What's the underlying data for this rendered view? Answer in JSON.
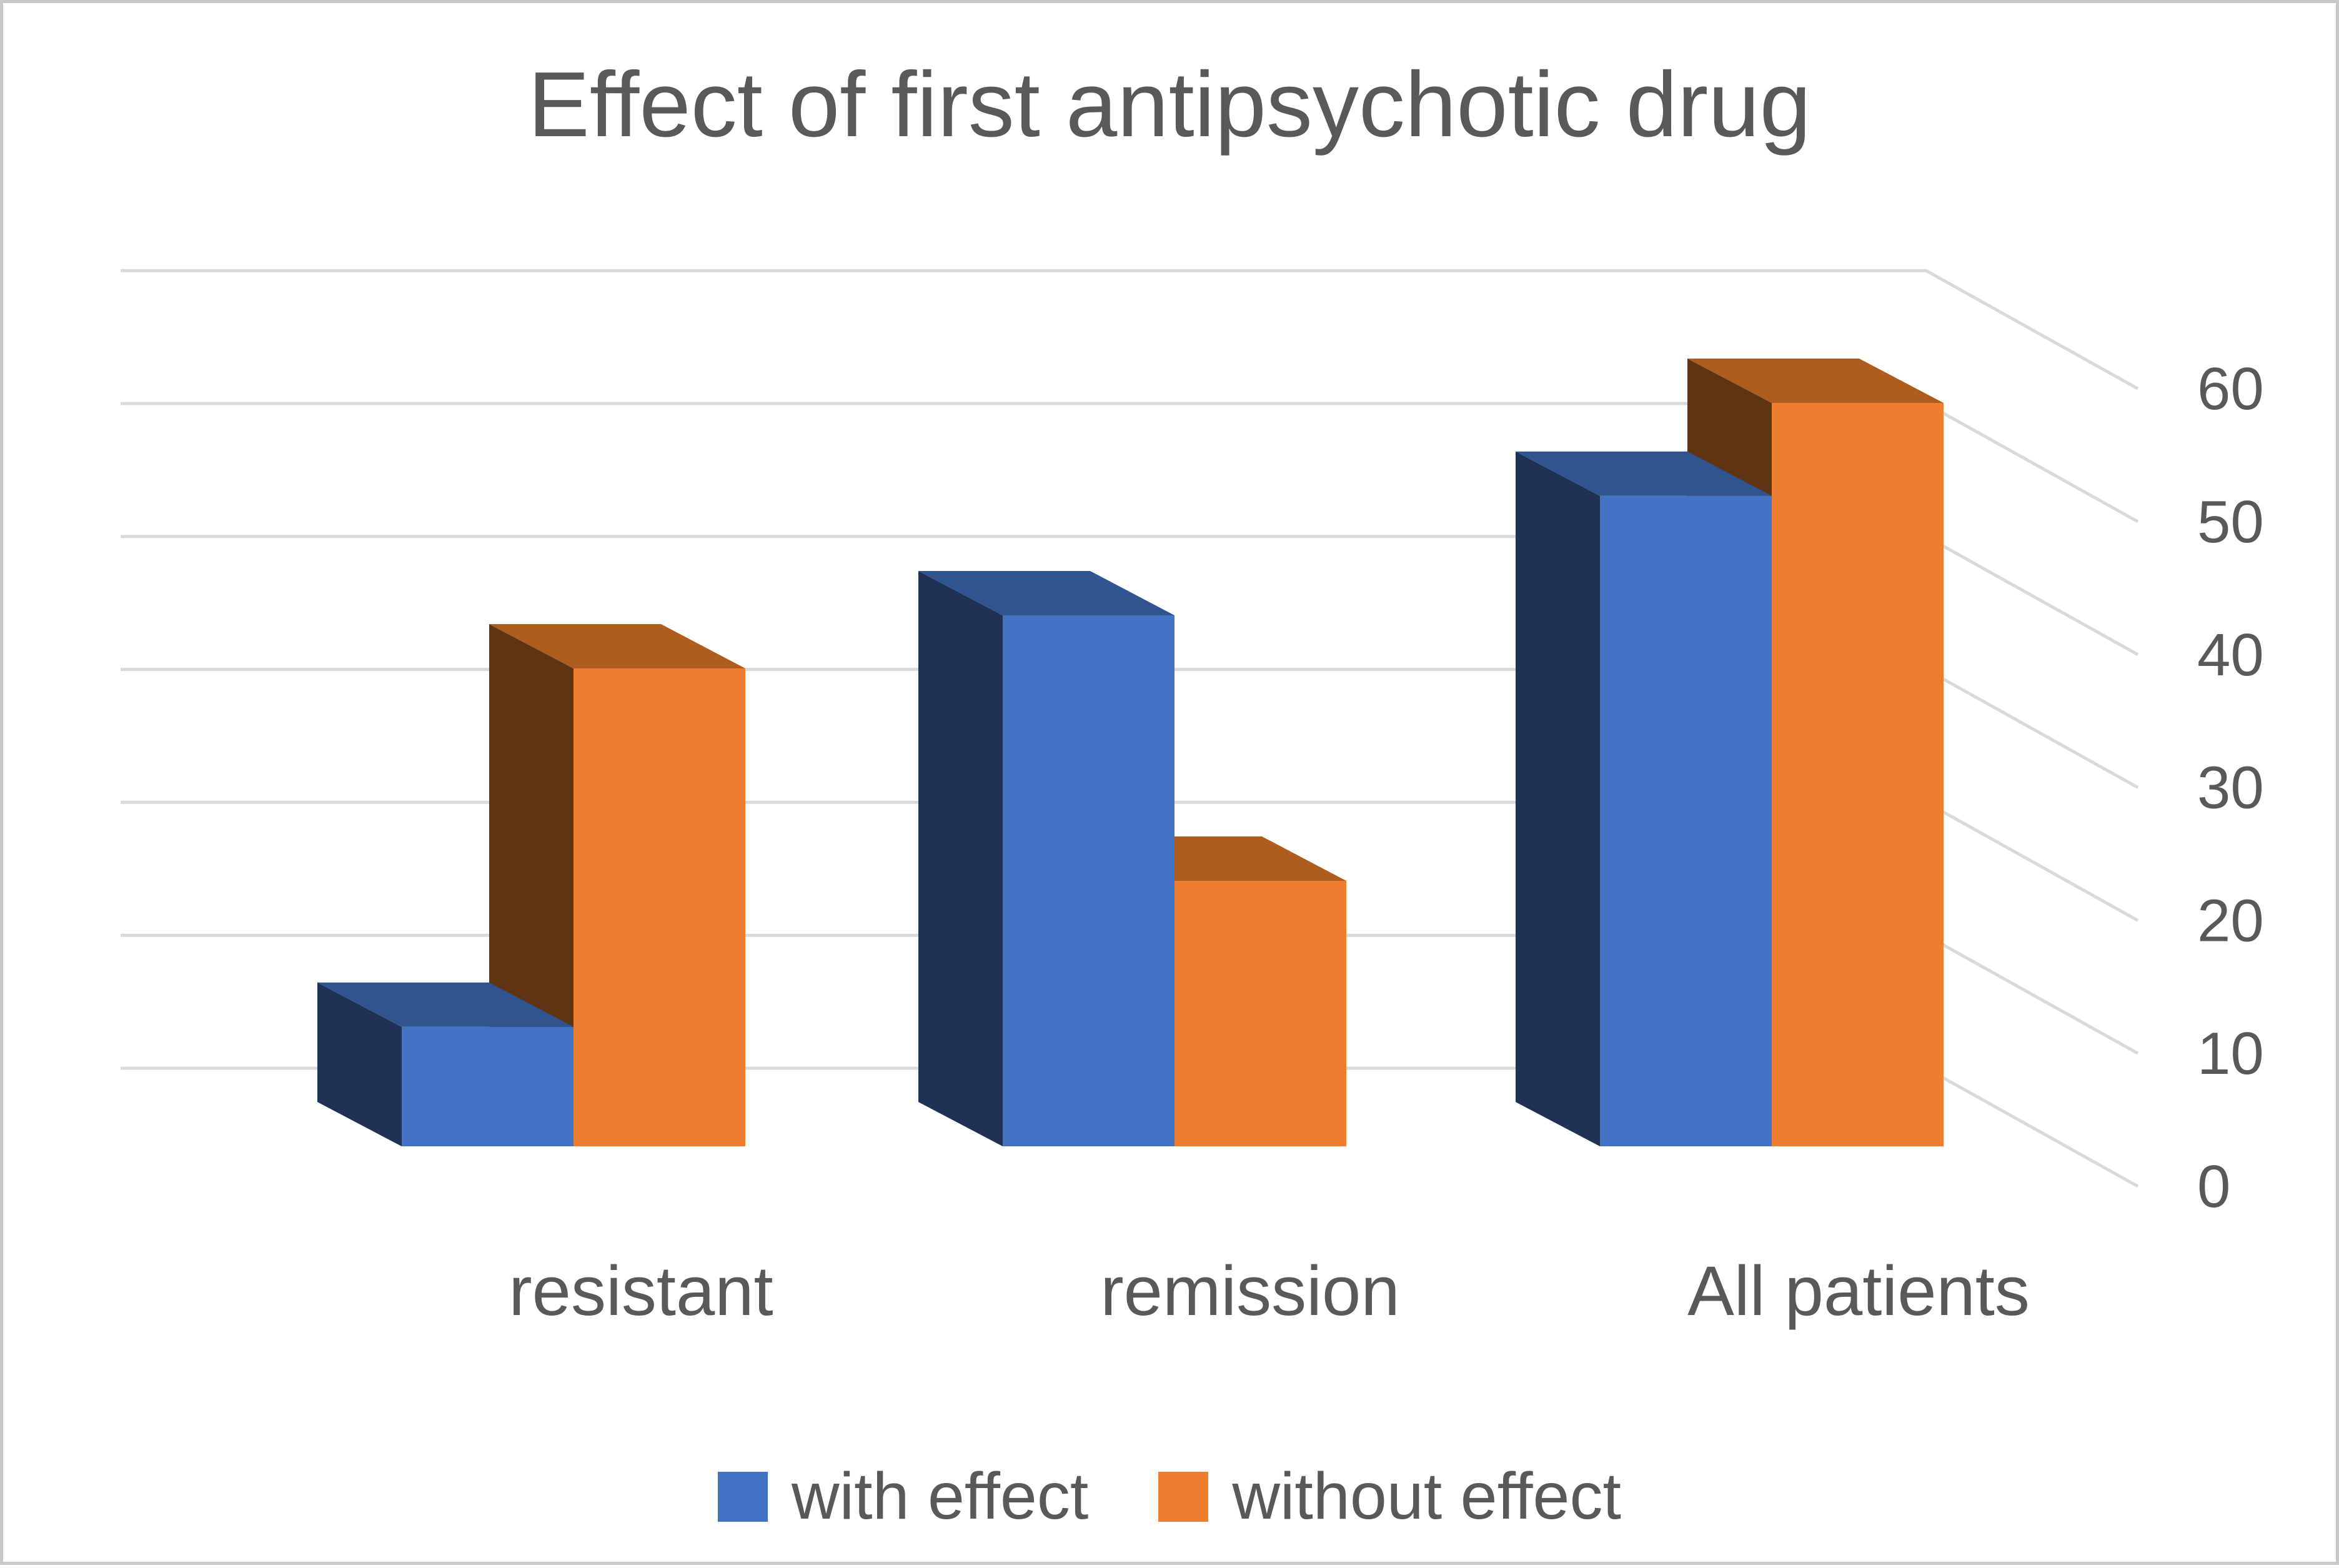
{
  "page": {
    "background": "#ffffff",
    "border_color": "#c6c8ca"
  },
  "chart_data": {
    "type": "bar",
    "subtype": "3d-clustered-column",
    "title": "Effect of first antipsychotic drug",
    "categories": [
      "resistant",
      "remission",
      "All patients"
    ],
    "series": [
      {
        "name": "with effect",
        "values": [
          9,
          40,
          49
        ],
        "color": "#4472C4",
        "color_top": "#30548F",
        "color_side": "#1E3255"
      },
      {
        "name": "without effect",
        "values": [
          36,
          20,
          56
        ],
        "color": "#ED7D31",
        "color_top": "#AE5D1E",
        "color_side": "#5E3413"
      }
    ],
    "ylim": [
      0,
      60
    ],
    "ytick_step": 10,
    "ytick_labels": [
      "0",
      "10",
      "20",
      "30",
      "40",
      "50",
      "60"
    ],
    "axis_side": "right",
    "grid": true,
    "gridline_color": "#D9D9D9",
    "text_color": "#595959",
    "legend_position": "bottom"
  }
}
